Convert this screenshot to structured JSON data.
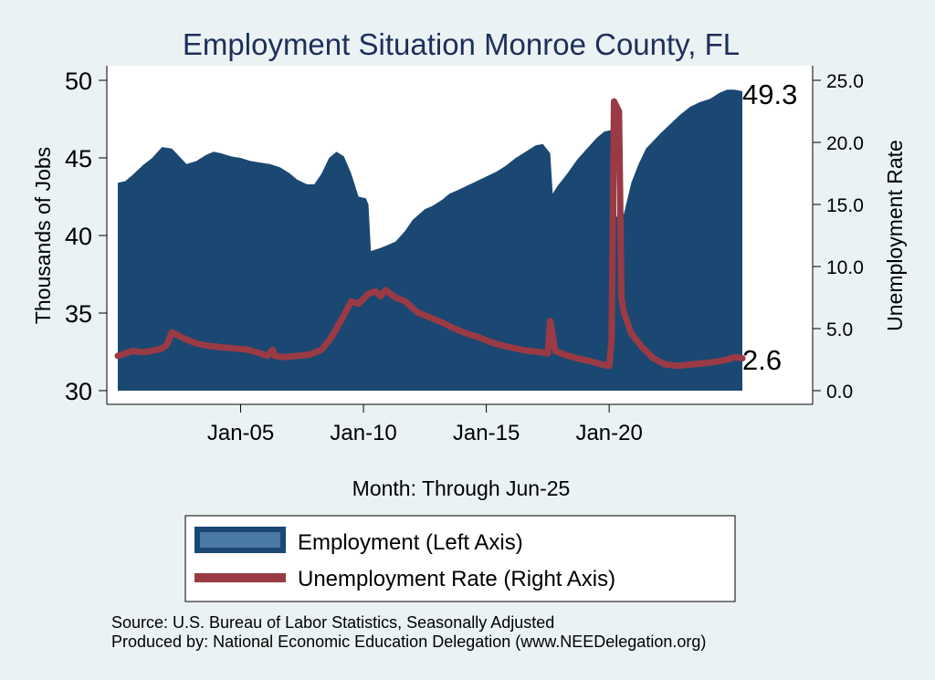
{
  "chart_data": {
    "type": "area+line",
    "title": "Employment Situation Monroe  County, FL",
    "xlabel": "Month: Through Jun-25",
    "ylabel_left": "Thousands of Jobs",
    "ylabel_right": "Unemployment Rate",
    "ylim_left": [
      30,
      50
    ],
    "ylim_right": [
      0,
      25
    ],
    "yticks_left": [
      "30",
      "35",
      "40",
      "45",
      "50"
    ],
    "yticks_right": [
      "0.0",
      "5.0",
      "10.0",
      "15.0",
      "20.0",
      "25.0"
    ],
    "x_range": [
      2000.0,
      2025.42
    ],
    "xticks": [
      {
        "x": 2005.0,
        "label": "Jan-05"
      },
      {
        "x": 2010.0,
        "label": "Jan-10"
      },
      {
        "x": 2015.0,
        "label": "Jan-15"
      },
      {
        "x": 2020.0,
        "label": "Jan-20"
      }
    ],
    "grid": false,
    "legend_position": "bottom",
    "series": [
      {
        "name": "Employment (Left Axis)",
        "axis": "left",
        "style": "area",
        "color": "#1a4872",
        "points": [
          [
            2000.0,
            43.4
          ],
          [
            2000.3,
            43.5
          ],
          [
            2000.6,
            43.9
          ],
          [
            2001.0,
            44.5
          ],
          [
            2001.4,
            45.0
          ],
          [
            2001.8,
            45.7
          ],
          [
            2002.2,
            45.6
          ],
          [
            2002.5,
            45.1
          ],
          [
            2002.8,
            44.6
          ],
          [
            2003.2,
            44.8
          ],
          [
            2003.6,
            45.2
          ],
          [
            2003.9,
            45.4
          ],
          [
            2004.2,
            45.3
          ],
          [
            2004.6,
            45.1
          ],
          [
            2005.0,
            45.0
          ],
          [
            2005.4,
            44.8
          ],
          [
            2005.8,
            44.7
          ],
          [
            2006.2,
            44.6
          ],
          [
            2006.6,
            44.4
          ],
          [
            2007.0,
            44.0
          ],
          [
            2007.3,
            43.6
          ],
          [
            2007.7,
            43.3
          ],
          [
            2008.0,
            43.3
          ],
          [
            2008.3,
            44.0
          ],
          [
            2008.6,
            45.0
          ],
          [
            2008.9,
            45.4
          ],
          [
            2009.2,
            45.1
          ],
          [
            2009.5,
            44.0
          ],
          [
            2009.8,
            42.5
          ],
          [
            2010.1,
            42.4
          ],
          [
            2010.2,
            42.0
          ],
          [
            2010.3,
            39.0
          ],
          [
            2010.7,
            39.2
          ],
          [
            2011.0,
            39.4
          ],
          [
            2011.3,
            39.6
          ],
          [
            2011.7,
            40.3
          ],
          [
            2012.0,
            41.0
          ],
          [
            2012.5,
            41.7
          ],
          [
            2012.8,
            41.9
          ],
          [
            2013.2,
            42.3
          ],
          [
            2013.5,
            42.7
          ],
          [
            2013.8,
            42.9
          ],
          [
            2014.2,
            43.2
          ],
          [
            2014.6,
            43.5
          ],
          [
            2015.0,
            43.8
          ],
          [
            2015.4,
            44.1
          ],
          [
            2015.8,
            44.5
          ],
          [
            2016.2,
            45.0
          ],
          [
            2016.6,
            45.4
          ],
          [
            2017.0,
            45.8
          ],
          [
            2017.3,
            45.9
          ],
          [
            2017.6,
            45.3
          ],
          [
            2017.7,
            42.7
          ],
          [
            2017.9,
            43.2
          ],
          [
            2018.3,
            44.0
          ],
          [
            2018.7,
            44.9
          ],
          [
            2019.1,
            45.6
          ],
          [
            2019.5,
            46.3
          ],
          [
            2019.8,
            46.7
          ],
          [
            2020.1,
            46.8
          ],
          [
            2020.2,
            46.0
          ],
          [
            2020.3,
            41.2
          ],
          [
            2020.6,
            41.4
          ],
          [
            2020.9,
            43.4
          ],
          [
            2021.2,
            44.6
          ],
          [
            2021.5,
            45.6
          ],
          [
            2021.8,
            46.1
          ],
          [
            2022.1,
            46.6
          ],
          [
            2022.5,
            47.2
          ],
          [
            2022.9,
            47.8
          ],
          [
            2023.3,
            48.3
          ],
          [
            2023.7,
            48.6
          ],
          [
            2024.1,
            48.8
          ],
          [
            2024.5,
            49.2
          ],
          [
            2024.8,
            49.4
          ],
          [
            2025.1,
            49.4
          ],
          [
            2025.42,
            49.3
          ]
        ],
        "end_label": "49.3"
      },
      {
        "name": "Unemployment Rate (Right Axis)",
        "axis": "right",
        "style": "line",
        "color": "#9a3a44",
        "points": [
          [
            2000.0,
            2.8
          ],
          [
            2000.3,
            3.0
          ],
          [
            2000.6,
            3.2
          ],
          [
            2001.0,
            3.1
          ],
          [
            2001.4,
            3.2
          ],
          [
            2001.8,
            3.4
          ],
          [
            2002.0,
            3.7
          ],
          [
            2002.2,
            4.7
          ],
          [
            2002.4,
            4.5
          ],
          [
            2002.7,
            4.2
          ],
          [
            2003.2,
            3.8
          ],
          [
            2003.7,
            3.6
          ],
          [
            2004.2,
            3.5
          ],
          [
            2004.8,
            3.4
          ],
          [
            2005.3,
            3.3
          ],
          [
            2005.8,
            3.0
          ],
          [
            2006.1,
            2.8
          ],
          [
            2006.3,
            3.3
          ],
          [
            2006.4,
            2.8
          ],
          [
            2006.8,
            2.7
          ],
          [
            2007.3,
            2.8
          ],
          [
            2007.8,
            2.9
          ],
          [
            2008.3,
            3.3
          ],
          [
            2008.7,
            4.3
          ],
          [
            2009.1,
            5.7
          ],
          [
            2009.5,
            7.2
          ],
          [
            2009.8,
            7.0
          ],
          [
            2010.2,
            7.8
          ],
          [
            2010.5,
            8.0
          ],
          [
            2010.7,
            7.6
          ],
          [
            2010.9,
            8.1
          ],
          [
            2011.3,
            7.5
          ],
          [
            2011.7,
            7.2
          ],
          [
            2012.2,
            6.3
          ],
          [
            2012.7,
            5.9
          ],
          [
            2013.2,
            5.5
          ],
          [
            2013.7,
            5.0
          ],
          [
            2014.2,
            4.6
          ],
          [
            2014.7,
            4.3
          ],
          [
            2015.2,
            3.9
          ],
          [
            2015.7,
            3.6
          ],
          [
            2016.2,
            3.4
          ],
          [
            2016.7,
            3.2
          ],
          [
            2017.2,
            3.1
          ],
          [
            2017.5,
            3.0
          ],
          [
            2017.6,
            5.6
          ],
          [
            2017.7,
            4.5
          ],
          [
            2017.8,
            3.2
          ],
          [
            2018.2,
            2.9
          ],
          [
            2018.7,
            2.6
          ],
          [
            2019.2,
            2.4
          ],
          [
            2019.7,
            2.1
          ],
          [
            2020.0,
            2.0
          ],
          [
            2020.1,
            4.0
          ],
          [
            2020.2,
            23.3
          ],
          [
            2020.4,
            22.5
          ],
          [
            2020.5,
            7.5
          ],
          [
            2020.6,
            6.3
          ],
          [
            2020.9,
            4.6
          ],
          [
            2021.3,
            3.6
          ],
          [
            2021.8,
            2.6
          ],
          [
            2022.3,
            2.1
          ],
          [
            2022.8,
            2.0
          ],
          [
            2023.3,
            2.1
          ],
          [
            2023.8,
            2.2
          ],
          [
            2024.3,
            2.3
          ],
          [
            2024.8,
            2.5
          ],
          [
            2025.1,
            2.7
          ],
          [
            2025.42,
            2.6
          ]
        ],
        "end_label": "2.6"
      }
    ]
  },
  "footer": {
    "source": "Source: U.S. Bureau of Labor Statistics, Seasonally Adjusted",
    "produced": "Produced by: National Economic Education Delegation (www.NEEDelegation.org)"
  }
}
